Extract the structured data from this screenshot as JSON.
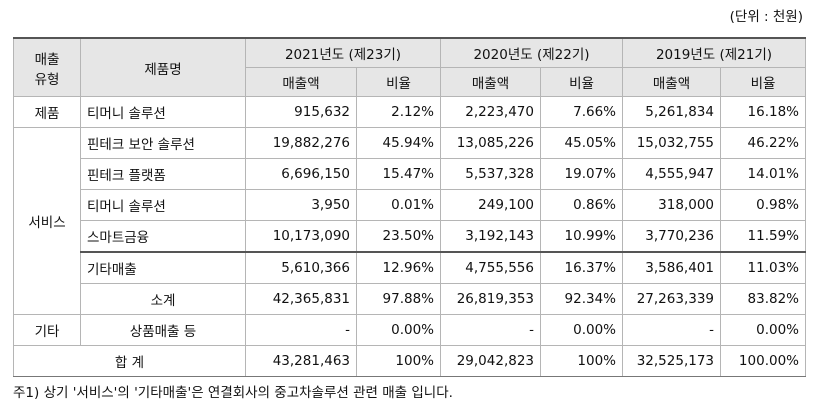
{
  "unit": "(단위 : 천원)",
  "table": {
    "headers": {
      "type": "매출\n유형",
      "product": "제품명",
      "years": [
        "2021년도 (제23기)",
        "2020년도 (제22기)",
        "2019년도 (제21기)"
      ],
      "sub": [
        "매출액",
        "비율",
        "매출액",
        "비율",
        "매출액",
        "비율"
      ]
    },
    "groups": [
      {
        "label": "제품",
        "rows": [
          {
            "item": "티머니 솔루션",
            "values": [
              "915,632",
              "2.12%",
              "2,223,470",
              "7.66%",
              "5,261,834",
              "16.18%"
            ]
          }
        ]
      },
      {
        "label": "서비스",
        "rows": [
          {
            "item": "핀테크 보안 솔루션",
            "values": [
              "19,882,276",
              "45.94%",
              "13,085,226",
              "45.05%",
              "15,032,755",
              "46.22%"
            ]
          },
          {
            "item": "핀테크 플랫폼",
            "values": [
              "6,696,150",
              "15.47%",
              "5,537,328",
              "19.07%",
              "4,555,947",
              "14.01%"
            ]
          },
          {
            "item": "티머니 솔루션",
            "values": [
              "3,950",
              "0.01%",
              "249,100",
              "0.86%",
              "318,000",
              "0.98%"
            ]
          },
          {
            "item": "스마트금융",
            "values": [
              "10,173,090",
              "23.50%",
              "3,192,143",
              "10.99%",
              "3,770,236",
              "11.59%"
            ]
          },
          {
            "item": "기타매출",
            "values": [
              "5,610,366",
              "12.96%",
              "4,755,556",
              "16.37%",
              "3,586,401",
              "11.03%"
            ]
          },
          {
            "item": "소계",
            "values": [
              "42,365,831",
              "97.88%",
              "26,819,353",
              "92.34%",
              "27,263,339",
              "83.82%"
            ]
          }
        ]
      },
      {
        "label": "기타",
        "rows": [
          {
            "item": "상품매출 등",
            "values": [
              "-",
              "0.00%",
              "-",
              "0.00%",
              "-",
              "0.00%"
            ]
          }
        ]
      }
    ],
    "total": {
      "label": "합 계",
      "values": [
        "43,281,463",
        "100%",
        "29,042,823",
        "100%",
        "32,525,173",
        "100.00%"
      ]
    }
  },
  "footnote": "주1) 상기 '서비스'의 '기타매출'은 연결회사의 중고차솔루션 관련 매출 입니다."
}
